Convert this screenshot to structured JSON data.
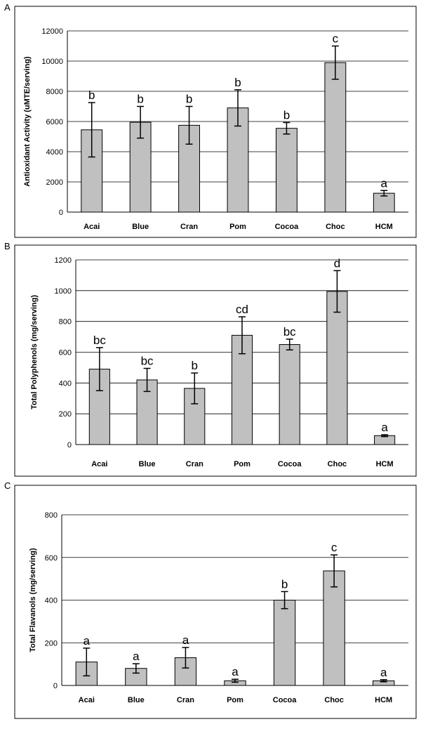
{
  "chart_data": [
    {
      "panel": "A",
      "type": "bar",
      "ylabel": "Antioxidant Activity (uMTE/serving)",
      "categories": [
        "Acai",
        "Blue",
        "Cran",
        "Pom",
        "Cocoa",
        "Choc",
        "HCM"
      ],
      "values": [
        5450,
        5950,
        5750,
        6900,
        5550,
        9900,
        1250
      ],
      "errors": [
        1800,
        1050,
        1250,
        1200,
        380,
        1100,
        180
      ],
      "significance": [
        "b",
        "b",
        "b",
        "b",
        "b",
        "c",
        "a"
      ],
      "ylim": [
        0,
        12000
      ],
      "yticks": [
        0,
        2000,
        4000,
        6000,
        8000,
        10000,
        12000
      ],
      "grid": true
    },
    {
      "panel": "B",
      "type": "bar",
      "ylabel": "Total Polyphenols (mg/serving)",
      "categories": [
        "Acai",
        "Blue",
        "Cran",
        "Pom",
        "Cocoa",
        "Choc",
        "HCM"
      ],
      "values": [
        490,
        420,
        365,
        710,
        650,
        995,
        58
      ],
      "errors": [
        140,
        75,
        100,
        120,
        35,
        135,
        6
      ],
      "significance": [
        "bc",
        "bc",
        "b",
        "cd",
        "bc",
        "d",
        "a"
      ],
      "ylim": [
        0,
        1200
      ],
      "yticks": [
        0,
        200,
        400,
        600,
        800,
        1000,
        1200
      ],
      "grid": true
    },
    {
      "panel": "C",
      "type": "bar",
      "ylabel": "Total Flavanols (mg/serving)",
      "categories": [
        "Acai",
        "Blue",
        "Cran",
        "Pom",
        "Cocoa",
        "Choc",
        "HCM"
      ],
      "values": [
        110,
        80,
        130,
        22,
        400,
        537,
        22
      ],
      "errors": [
        65,
        22,
        48,
        7,
        40,
        75,
        5
      ],
      "significance": [
        "a",
        "a",
        "a",
        "a",
        "b",
        "c",
        "a"
      ],
      "ylim": [
        0,
        800
      ],
      "yticks": [
        0,
        200,
        400,
        600,
        800
      ],
      "grid": true
    }
  ]
}
